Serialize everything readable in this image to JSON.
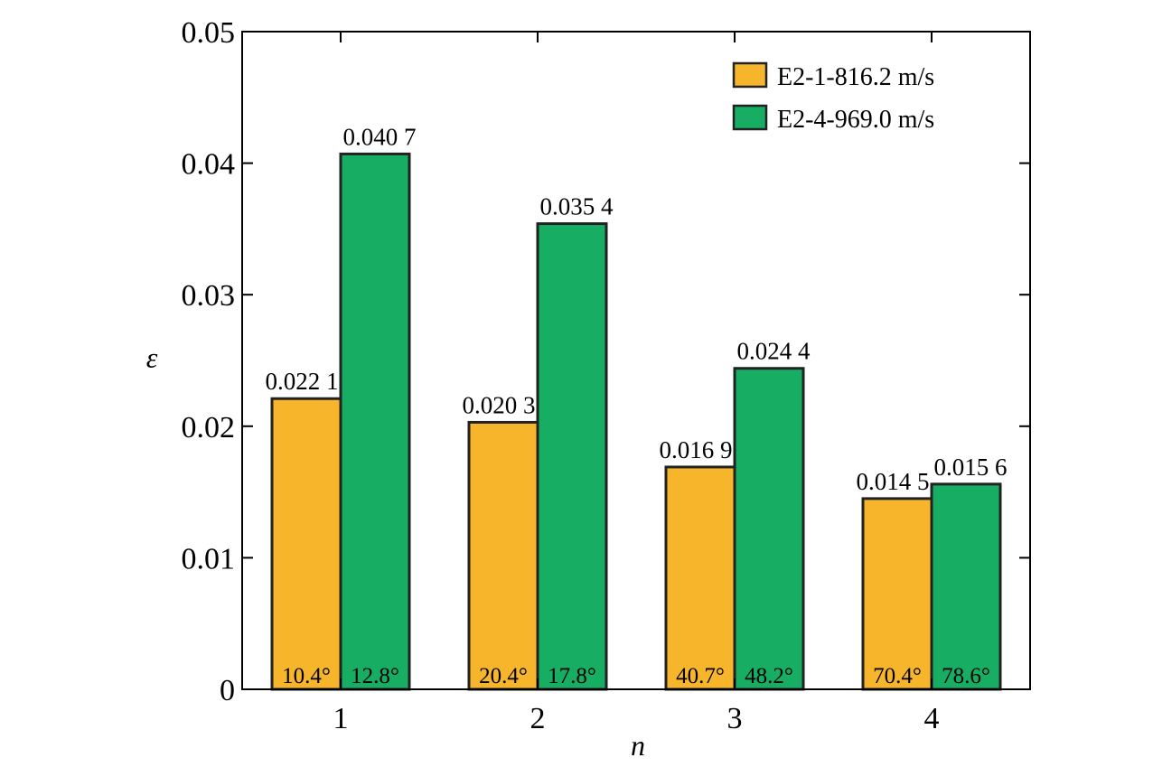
{
  "chart_data": {
    "type": "bar",
    "categories": [
      "1",
      "2",
      "3",
      "4"
    ],
    "xlabel": "n",
    "ylabel": "ε",
    "ylim": [
      0,
      0.05
    ],
    "yticks": [
      "0",
      "0.01",
      "0.02",
      "0.03",
      "0.04",
      "0.05"
    ],
    "grid": false,
    "legend_position": "top-right",
    "series": [
      {
        "name": "E2-1-816.2 m/s",
        "color": "#f7b52b",
        "values": [
          0.0221,
          0.0203,
          0.0169,
          0.0145
        ],
        "value_labels": [
          "0.022 1",
          "0.020 3",
          "0.016 9",
          "0.014 5"
        ],
        "angle_labels": [
          "10.4°",
          "20.4°",
          "40.7°",
          "70.4°"
        ]
      },
      {
        "name": "E2-4-969.0 m/s",
        "color": "#17ad63",
        "values": [
          0.0407,
          0.0354,
          0.0244,
          0.0156
        ],
        "value_labels": [
          "0.040 7",
          "0.035 4",
          "0.024 4",
          "0.015 6"
        ],
        "angle_labels": [
          "12.8°",
          "17.8°",
          "48.2°",
          "78.6°"
        ]
      }
    ]
  }
}
